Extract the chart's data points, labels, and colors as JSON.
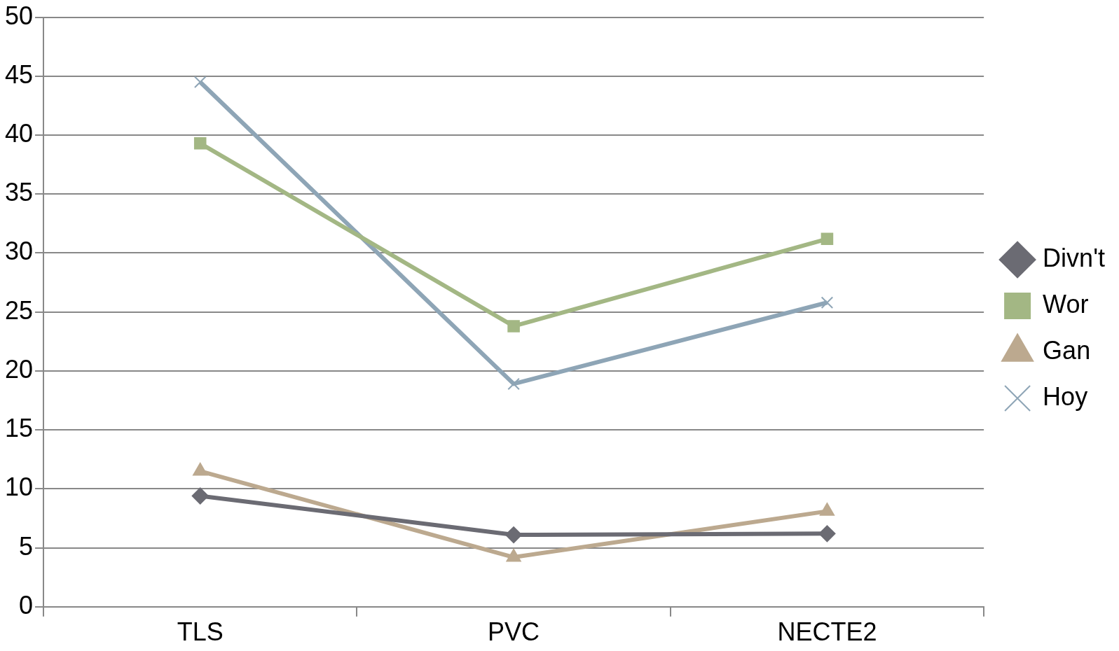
{
  "chart_data": {
    "type": "line",
    "categories": [
      "TLS",
      "PVC",
      "NECTE2"
    ],
    "series": [
      {
        "name": "Divn't",
        "color": "#6b6b73",
        "marker": "diamond",
        "values": [
          9.4,
          6.1,
          6.2
        ]
      },
      {
        "name": "Wor",
        "color": "#a3b784",
        "marker": "square",
        "values": [
          39.3,
          23.8,
          31.2
        ]
      },
      {
        "name": "Gan",
        "color": "#bca98f",
        "marker": "triangle",
        "values": [
          11.5,
          4.2,
          8.1
        ]
      },
      {
        "name": "Hoy",
        "color": "#8ea5b6",
        "marker": "cross",
        "values": [
          44.5,
          18.9,
          25.8
        ]
      }
    ],
    "ylim": [
      0,
      50
    ],
    "yticks": [
      0,
      5,
      10,
      15,
      20,
      25,
      30,
      35,
      40,
      45,
      50
    ],
    "grid": "y",
    "legend": "right",
    "line_style": "solid"
  }
}
